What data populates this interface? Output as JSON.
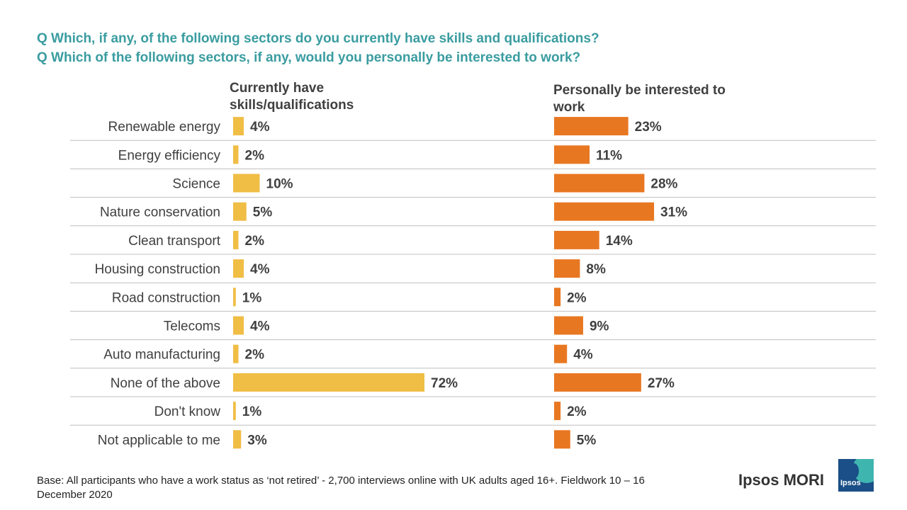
{
  "questions": [
    "Q Which, if any, of the following  sectors do you currently have skills and qualifications?",
    "Q Which of the following  sectors, if any, would you personally be interested to work?"
  ],
  "chart_data": {
    "type": "bar",
    "orientation": "horizontal",
    "categories": [
      "Renewable energy",
      "Energy efficiency",
      "Science",
      "Nature conservation",
      "Clean transport",
      "Housing construction",
      "Road construction",
      "Telecoms",
      "Auto manufacturing",
      "None of the above",
      "Don't know",
      "Not applicable to me"
    ],
    "series": [
      {
        "name": "Currently have skills/qualifications",
        "color": "#f0bd45",
        "values": [
          4,
          2,
          10,
          5,
          2,
          4,
          1,
          4,
          2,
          72,
          1,
          3
        ],
        "labels": [
          "4%",
          "2%",
          "10%",
          "5%",
          "2%",
          "4%",
          "1%",
          "4%",
          "2%",
          "72%",
          "1%",
          "3%"
        ]
      },
      {
        "name": "Personally be interested to work",
        "color": "#e87722",
        "values": [
          23,
          11,
          28,
          31,
          14,
          8,
          2,
          9,
          4,
          27,
          2,
          5
        ],
        "labels": [
          "23%",
          "11%",
          "28%",
          "31%",
          "14%",
          "8%",
          "2%",
          "9%",
          "4%",
          "27%",
          "2%",
          "5%"
        ]
      }
    ],
    "unit": "%",
    "divider_color": "#bfbfbf"
  },
  "footer": "Base: All participants who have a work status as ‘not retired’ - 2,700 interviews online with UK adults aged 16+. Fieldwork 10 – 16 December 2020",
  "logo": {
    "brand": "Ipsos MORI",
    "mark": "Ipsos"
  }
}
